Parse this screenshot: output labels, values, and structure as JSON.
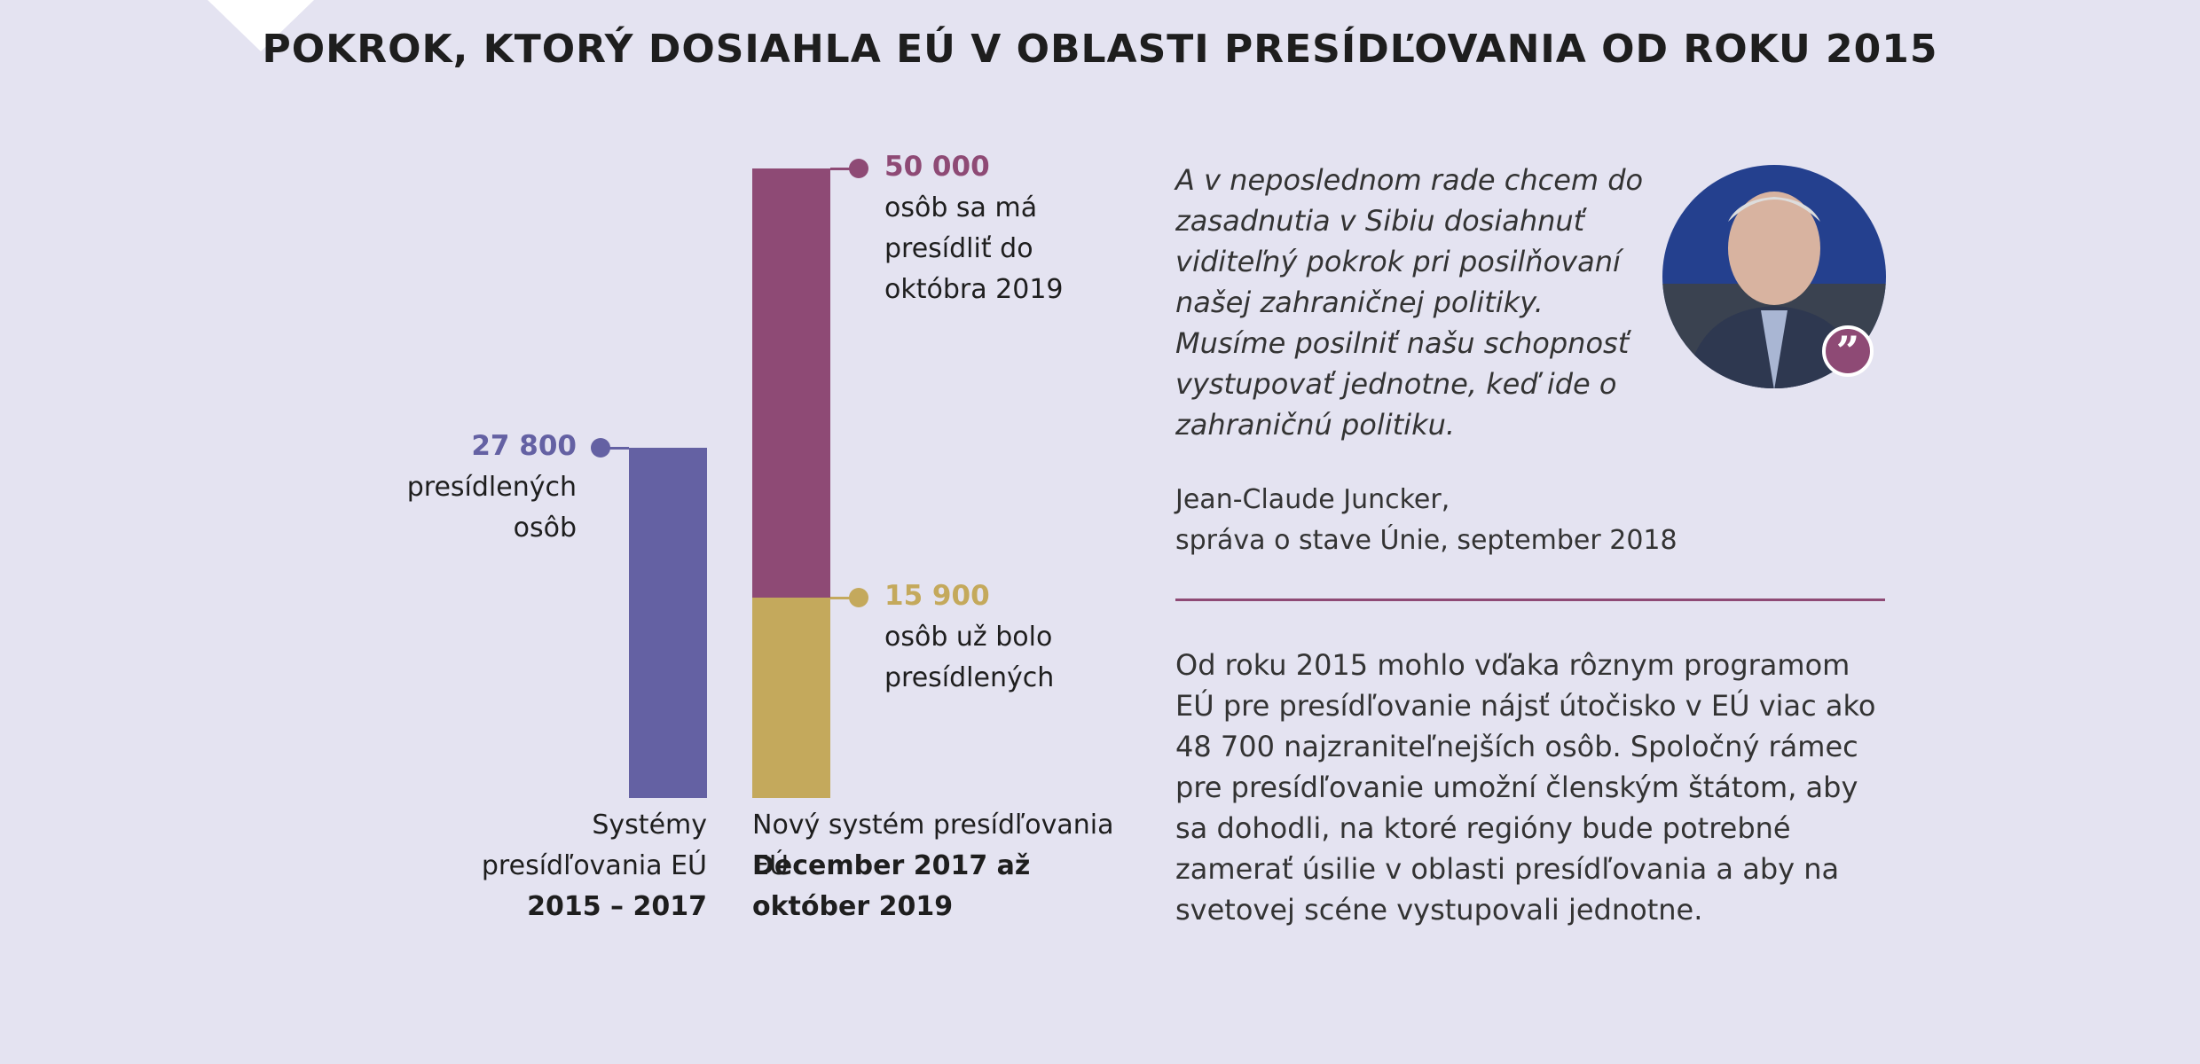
{
  "chart_data": {
    "type": "bar",
    "title": "POKROK, KTORÝ DOSIAHLA EÚ V OBLASTI PRESÍDĽOVANIA OD ROKU 2015",
    "categories": [
      "Systémy presídľovania EÚ",
      "Nový systém presídľovania EÚ"
    ],
    "periods": [
      "2015 – 2017",
      "December 2017 až október 2019"
    ],
    "ylim": [
      0,
      50000
    ],
    "series": [
      {
        "color": "#6461a3",
        "values": [
          27800,
          null
        ],
        "value_labels": [
          "27 800",
          null
        ],
        "descriptions": [
          "presídlených osôb",
          null
        ]
      },
      {
        "color": "#8e4a75",
        "values": [
          null,
          50000
        ],
        "value_labels": [
          null,
          "50 000"
        ],
        "descriptions": [
          null,
          "osôb sa má presídliť do októbra 2019"
        ]
      },
      {
        "color": "#c4a95c",
        "values": [
          null,
          15900
        ],
        "value_labels": [
          null,
          "15 900"
        ],
        "descriptions": [
          null,
          "osôb už bolo presídlených"
        ]
      }
    ]
  },
  "quote": {
    "text": "A v neposlednom rade chcem do zasadnutia v Sibiu dosiahnuť viditeľný pokrok pri posilňovaní našej zahraničnej politiky. Musíme posilniť našu schopnosť vystupovať jednotne, keď ide o zahraničnú politiku.",
    "author": "Jean-Claude Juncker,",
    "source": "správa o stave Únie, september 2018"
  },
  "body": "Od roku 2015 mohlo vďaka rôznym programom EÚ pre presídľovanie nájsť útočisko v EÚ viac ako 48 700 najzraniteľnejších osôb. Spoločný rámec pre presídľovanie umožní členským štátom, aby sa dohodli, na ktoré regióny bude potrebné zamerať úsilie v oblasti presídľovania a aby na svetovej scéne vystupovali jednotne."
}
